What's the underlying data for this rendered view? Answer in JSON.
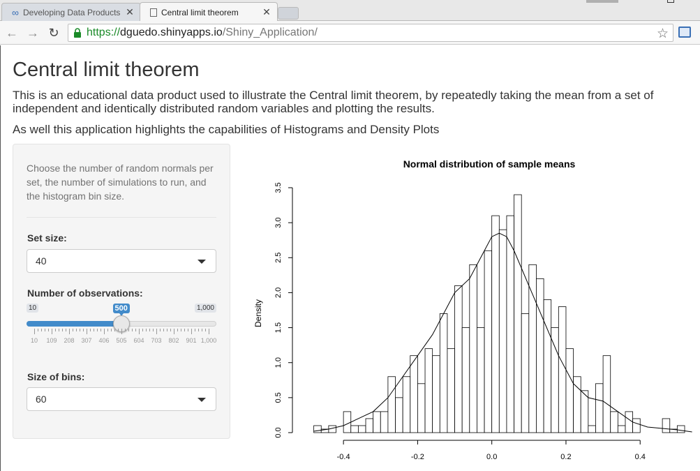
{
  "browser": {
    "tabs": [
      {
        "title": "Developing Data Products",
        "active": false
      },
      {
        "title": "Central limit theorem",
        "active": true
      }
    ],
    "url": {
      "scheme": "https://",
      "host": "dguedo.shinyapps.io",
      "path": "/Shiny_Application/"
    }
  },
  "page": {
    "title": "Central limit theorem",
    "intro": "This is an educational data product used to illustrate the Central limit theorem, by repeatedly taking the mean from a set of independent and identically distributed random variables and plotting the results.",
    "intro2": "As well this application highlights the capabilities of Histograms and Density Plots"
  },
  "sidebar": {
    "help": "Choose the number of random normals per set, the number of simulations to run, and the histogram bin size.",
    "set_size": {
      "label": "Set size:",
      "value": "40"
    },
    "observations": {
      "label": "Number of observations:",
      "min": "10",
      "max": "1,000",
      "value": "500",
      "fraction": 0.5,
      "tick_labels": [
        "10",
        "109",
        "208",
        "307",
        "406",
        "505",
        "604",
        "703",
        "802",
        "901",
        "1,000"
      ]
    },
    "bins": {
      "label": "Size of bins:",
      "value": "60"
    }
  },
  "chart_data": {
    "type": "bar",
    "title": "Normal distribution of sample means",
    "xlabel": "",
    "ylabel": "Density",
    "xlim": [
      -0.5,
      0.52
    ],
    "ylim": [
      0,
      3.5
    ],
    "x_ticks": [
      "-0.4",
      "-0.2",
      "0.0",
      "0.2",
      "0.4"
    ],
    "y_ticks": [
      "0.0",
      "0.5",
      "1.0",
      "1.5",
      "2.0",
      "2.5",
      "3.0",
      "3.5"
    ],
    "bin_start": -0.48,
    "bin_width": 0.02,
    "values": [
      0.1,
      0.05,
      0.1,
      0.0,
      0.3,
      0.1,
      0.1,
      0.2,
      0.3,
      0.3,
      0.8,
      0.5,
      0.8,
      1.1,
      0.7,
      1.2,
      1.1,
      1.7,
      1.2,
      2.1,
      1.5,
      2.4,
      1.5,
      2.6,
      3.1,
      2.9,
      3.1,
      3.4,
      1.7,
      2.4,
      2.2,
      1.9,
      1.5,
      1.8,
      1.2,
      0.8,
      0.6,
      0.1,
      0.7,
      1.1,
      0.3,
      0.1,
      0.3,
      0.2,
      0.0,
      0.0,
      0.0,
      0.2,
      0.05,
      0.1
    ],
    "density_x": [
      -0.48,
      -0.44,
      -0.4,
      -0.36,
      -0.32,
      -0.28,
      -0.24,
      -0.2,
      -0.16,
      -0.12,
      -0.1,
      -0.06,
      -0.02,
      0.0,
      0.02,
      0.04,
      0.06,
      0.1,
      0.14,
      0.18,
      0.22,
      0.26,
      0.3,
      0.34,
      0.38,
      0.42,
      0.46,
      0.5,
      0.54
    ],
    "density_y": [
      0.02,
      0.05,
      0.1,
      0.2,
      0.3,
      0.5,
      0.8,
      1.1,
      1.4,
      1.8,
      2.0,
      2.2,
      2.6,
      2.8,
      2.85,
      2.8,
      2.6,
      2.1,
      1.6,
      1.1,
      0.7,
      0.5,
      0.45,
      0.3,
      0.15,
      0.08,
      0.06,
      0.04,
      0.01
    ]
  }
}
